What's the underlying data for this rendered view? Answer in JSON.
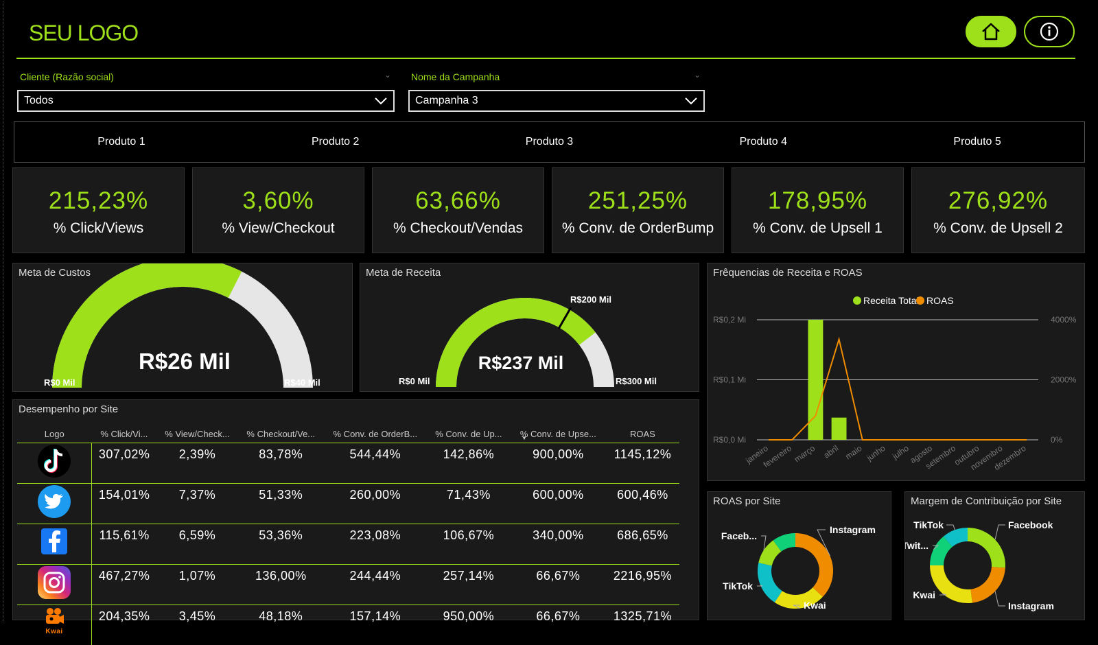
{
  "header": {
    "logo_text": "SEU LOGO",
    "home_icon": "home-icon",
    "info_icon": "info-icon",
    "accent": "#9ee01a"
  },
  "filters": {
    "cliente": {
      "label": "Cliente (Razão social)",
      "value": "Todos"
    },
    "campanha": {
      "label": "Nome da Campanha",
      "value": "Campanha 3"
    }
  },
  "products": [
    "Produto 1",
    "Produto 2",
    "Produto 3",
    "Produto 4",
    "Produto 5"
  ],
  "kpis": [
    {
      "value": "215,23%",
      "label": "% Click/Views"
    },
    {
      "value": "3,60%",
      "label": "% View/Checkout"
    },
    {
      "value": "63,66%",
      "label": "% Checkout/Vendas"
    },
    {
      "value": "251,25%",
      "label": "% Conv. de OrderBump"
    },
    {
      "value": "178,95%",
      "label": "% Conv. de Upsell 1"
    },
    {
      "value": "276,92%",
      "label": "% Conv. de Upsell 2"
    }
  ],
  "gauges": {
    "custos": {
      "title": "Meta de Custos",
      "value": "R$26 Mil",
      "min": "R$0 Mil",
      "max": "R$40 Mil",
      "value_num": 26,
      "max_num": 40
    },
    "receita": {
      "title": "Meta de Receita",
      "value": "R$237 Mil",
      "min": "R$0 Mil",
      "max": "R$300 Mil",
      "target": "R$200 Mil",
      "value_num": 237,
      "max_num": 300,
      "target_num": 200
    }
  },
  "performance": {
    "title": "Desempenho por Site",
    "columns": [
      "Logo",
      "% Click/Vi...",
      "% View/Check...",
      "% Checkout/Ve...",
      "% Conv. de OrderB...",
      "% Conv. de Up...",
      "% Conv. de Upse...",
      "ROAS"
    ],
    "rows": [
      {
        "site": "tiktok-icon",
        "values": [
          "307,02%",
          "2,39%",
          "83,78%",
          "544,44%",
          "142,86%",
          "900,00%",
          "1145,12%"
        ]
      },
      {
        "site": "twitter-icon",
        "values": [
          "154,01%",
          "7,37%",
          "51,33%",
          "260,00%",
          "71,43%",
          "600,00%",
          "600,46%"
        ]
      },
      {
        "site": "facebook-icon",
        "values": [
          "115,61%",
          "6,59%",
          "53,36%",
          "223,08%",
          "106,67%",
          "340,00%",
          "686,65%"
        ]
      },
      {
        "site": "instagram-icon",
        "values": [
          "467,27%",
          "1,07%",
          "136,00%",
          "244,44%",
          "257,14%",
          "66,67%",
          "2216,95%"
        ]
      },
      {
        "site": "kwai-icon",
        "label": "Kwai",
        "values": [
          "204,35%",
          "3,45%",
          "48,18%",
          "157,14%",
          "950,00%",
          "66,67%",
          "1325,71%"
        ]
      }
    ]
  },
  "chart_data": [
    {
      "type": "bar",
      "title": "Frêquencias de Receita e ROAS",
      "categories": [
        "janeiro",
        "fevereiro",
        "março",
        "abril",
        "maio",
        "junho",
        "julho",
        "agosto",
        "setembro",
        "outubro",
        "novembro",
        "dezembro"
      ],
      "series": [
        {
          "name": "Receita Total",
          "type": "bar",
          "axis": "left",
          "color": "#9ee01a",
          "values": [
            0,
            0,
            0.2,
            0.037,
            0,
            0,
            0,
            0,
            0,
            0,
            0,
            0
          ]
        },
        {
          "name": "ROAS",
          "type": "line",
          "axis": "right",
          "color": "#f08c00",
          "values": [
            0,
            0,
            800,
            3350,
            0,
            0,
            0,
            0,
            0,
            0,
            0,
            0
          ]
        }
      ],
      "y_left": {
        "ticks": [
          "R$0,0 Mi",
          "R$0,1 Mi",
          "R$0,2 Mi"
        ],
        "range": [
          0,
          0.2
        ]
      },
      "y_right": {
        "ticks": [
          "0%",
          "2000%",
          "4000%"
        ],
        "range": [
          0,
          4000
        ]
      },
      "grid": true,
      "legend": "top-center"
    },
    {
      "type": "pie",
      "title": "ROAS por Site",
      "donut": true,
      "labels": [
        "Instagram",
        "Kwai",
        "TikTok",
        "Faceb...",
        "Twitter"
      ],
      "values": [
        34.8,
        20.8,
        18.0,
        10.8,
        9.4
      ],
      "colors": [
        "#f08c00",
        "#e8e010",
        "#10c0c8",
        "#9ee01a",
        "#10d078"
      ]
    },
    {
      "type": "pie",
      "title": "Margem de Contribuição por Site",
      "donut": true,
      "labels": [
        "Facebook",
        "Instagram",
        "Kwai",
        "Twit...",
        "TikTok"
      ],
      "values": [
        26,
        22,
        27,
        14,
        11
      ],
      "colors": [
        "#9ee01a",
        "#f08c00",
        "#e8e010",
        "#10d078",
        "#10c0c8"
      ]
    }
  ]
}
